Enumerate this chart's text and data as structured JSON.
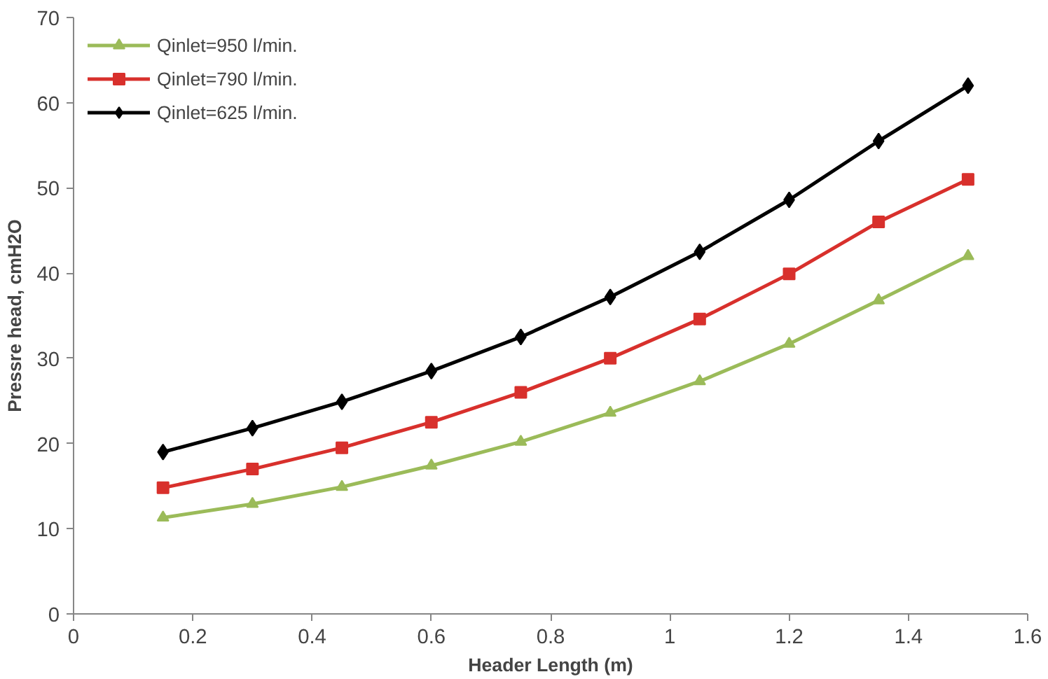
{
  "chart_data": {
    "type": "line",
    "xlabel": "Header Length (m)",
    "ylabel": "Pressre head, cmH2O",
    "x": [
      0.15,
      0.3,
      0.45,
      0.6,
      0.75,
      0.9,
      1.05,
      1.2,
      1.35,
      1.5
    ],
    "series": [
      {
        "name": "Qinlet=950 l/min.",
        "color": "#9bbb59",
        "marker": "triangle",
        "values": [
          11.3,
          12.9,
          14.9,
          17.4,
          20.2,
          23.6,
          27.3,
          31.7,
          36.8,
          42.0
        ]
      },
      {
        "name": "Qinlet=790 l/min.",
        "color": "#d8302c",
        "marker": "square",
        "values": [
          14.8,
          17.0,
          19.5,
          22.5,
          26.0,
          30.0,
          34.6,
          39.9,
          46.0,
          51.0
        ]
      },
      {
        "name": "Qinlet=625 l/min.",
        "color": "#000000",
        "marker": "diamond",
        "values": [
          19.0,
          21.8,
          24.9,
          28.5,
          32.5,
          37.2,
          42.5,
          48.6,
          55.5,
          62.0
        ]
      }
    ],
    "xlim": [
      0,
      1.6
    ],
    "xticks": [
      0,
      0.2,
      0.4,
      0.6,
      0.8,
      1,
      1.2,
      1.4,
      1.6
    ],
    "ylim": [
      0,
      70
    ],
    "yticks": [
      0,
      10,
      20,
      30,
      40,
      50,
      60,
      70
    ],
    "grid": false,
    "legend": "top left",
    "line_style": "solid"
  }
}
